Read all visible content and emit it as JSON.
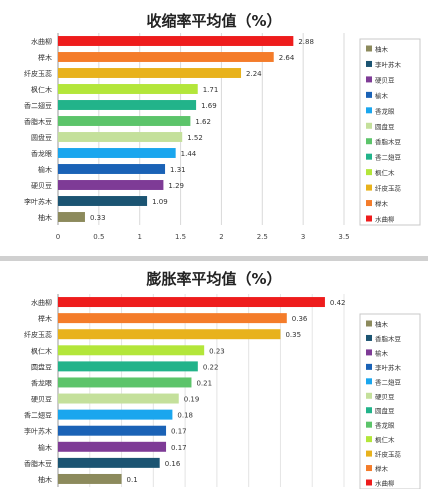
{
  "chart_data": [
    {
      "type": "bar",
      "orientation": "horizontal",
      "title": "收缩率平均值（%）",
      "categories": [
        "水曲柳",
        "榉木",
        "纤皮玉蕊",
        "枫仁木",
        "香二翅豆",
        "香脂木豆",
        "圆盘豆",
        "香龙眼",
        "榆木",
        "硬贝豆",
        "李叶苏木",
        "柚木"
      ],
      "values": [
        2.88,
        2.64,
        2.24,
        1.71,
        1.69,
        1.62,
        1.52,
        1.44,
        1.31,
        1.29,
        1.09,
        0.33
      ],
      "colors": [
        "#ee1c1c",
        "#f47c2a",
        "#e8b21c",
        "#b3e63a",
        "#22b38a",
        "#5cc46a",
        "#c4e09b",
        "#1aa6ee",
        "#1a62b6",
        "#7e3b96",
        "#1b5472",
        "#8c8a5c"
      ],
      "value_labels": [
        "2.88",
        "2.64",
        "2.24",
        "1.71",
        "1.69",
        "1.62",
        "1.52",
        "1.44",
        "1.31",
        "1.29",
        "1.09",
        "0.33"
      ],
      "xlim": [
        0,
        3.5
      ],
      "xticks": [
        "0",
        "0.5",
        "1",
        "1.5",
        "2",
        "2.5",
        "3",
        "3.5"
      ],
      "grid": true,
      "legend_position": "right",
      "legend": [
        "柚木",
        "李叶苏木",
        "硬贝豆",
        "榆木",
        "香龙眼",
        "圆盘豆",
        "香脂木豆",
        "香二翅豆",
        "枫仁木",
        "纤皮玉蕊",
        "榉木",
        "水曲柳"
      ]
    },
    {
      "type": "bar",
      "orientation": "horizontal",
      "title": "膨胀率平均值（%）",
      "categories": [
        "水曲柳",
        "榉木",
        "纤皮玉蕊",
        "枫仁木",
        "圆盘豆",
        "香龙眼",
        "硬贝豆",
        "香二翅豆",
        "李叶苏木",
        "榆木",
        "香脂木豆",
        "柚木"
      ],
      "values": [
        0.42,
        0.36,
        0.35,
        0.23,
        0.22,
        0.21,
        0.19,
        0.18,
        0.17,
        0.17,
        0.16,
        0.1
      ],
      "colors": [
        "#ee1c1c",
        "#f47c2a",
        "#e8b21c",
        "#b3e63a",
        "#22b38a",
        "#5cc46a",
        "#c4e09b",
        "#1aa6ee",
        "#1a62b6",
        "#7e3b96",
        "#1b5472",
        "#8c8a5c"
      ],
      "value_labels": [
        "0.42",
        "0.36",
        "0.35",
        "0.23",
        "0.22",
        "0.21",
        "0.19",
        "0.18",
        "0.17",
        "0.17",
        "0.16",
        "0.1"
      ],
      "xlim": [
        0,
        0.45
      ],
      "grid": true,
      "legend_position": "right",
      "legend": [
        "柚木",
        "香脂木豆",
        "榆木",
        "李叶苏木",
        "香二翅豆",
        "硬贝豆",
        "圆盘豆",
        "香龙眼",
        "枫仁木",
        "纤皮玉蕊",
        "榉木",
        "水曲柳"
      ]
    }
  ]
}
